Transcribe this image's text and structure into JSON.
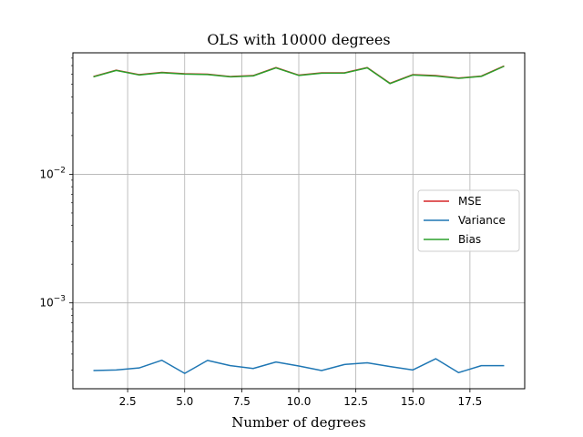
{
  "chart_data": {
    "type": "line",
    "title": "OLS with 10000 degrees",
    "xlabel": "Number of degrees",
    "ylabel": "",
    "yscale": "log",
    "xlim": [
      0.1,
      19.9
    ],
    "ylim": [
      0.000215,
      0.088
    ],
    "xticks": [
      2.5,
      5.0,
      7.5,
      10.0,
      12.5,
      15.0,
      17.5
    ],
    "xtick_labels": [
      "2.5",
      "5.0",
      "7.5",
      "10.0",
      "12.5",
      "15.0",
      "17.5"
    ],
    "yticks": [
      0.001,
      0.01
    ],
    "ytick_base": "10",
    "ytick_exponents": [
      "−3",
      "−2"
    ],
    "grid": true,
    "legend_position": "center-right",
    "x": [
      1,
      2,
      3,
      4,
      5,
      6,
      7,
      8,
      9,
      10,
      11,
      12,
      13,
      14,
      15,
      16,
      17,
      18,
      19
    ],
    "series": [
      {
        "name": "MSE",
        "color": "#d62728",
        "values": [
          0.0575,
          0.0645,
          0.0595,
          0.062,
          0.0605,
          0.06,
          0.0575,
          0.0585,
          0.0675,
          0.059,
          0.0615,
          0.0615,
          0.0675,
          0.051,
          0.0595,
          0.0585,
          0.056,
          0.058,
          0.0695
        ]
      },
      {
        "name": "Variance",
        "color": "#1f77b4",
        "values": [
          0.000298,
          0.000301,
          0.000312,
          0.000358,
          0.000283,
          0.000357,
          0.000325,
          0.000309,
          0.000347,
          0.000323,
          0.000298,
          0.000332,
          0.000342,
          0.00032,
          0.000301,
          0.000368,
          0.000287,
          0.000325,
          0.000325
        ]
      },
      {
        "name": "Bias",
        "color": "#2ca02c",
        "values": [
          0.0572,
          0.0642,
          0.0592,
          0.0616,
          0.0601,
          0.0596,
          0.0572,
          0.0582,
          0.0672,
          0.0587,
          0.0611,
          0.0612,
          0.0672,
          0.0507,
          0.0592,
          0.0581,
          0.0557,
          0.0577,
          0.0692
        ]
      }
    ]
  }
}
